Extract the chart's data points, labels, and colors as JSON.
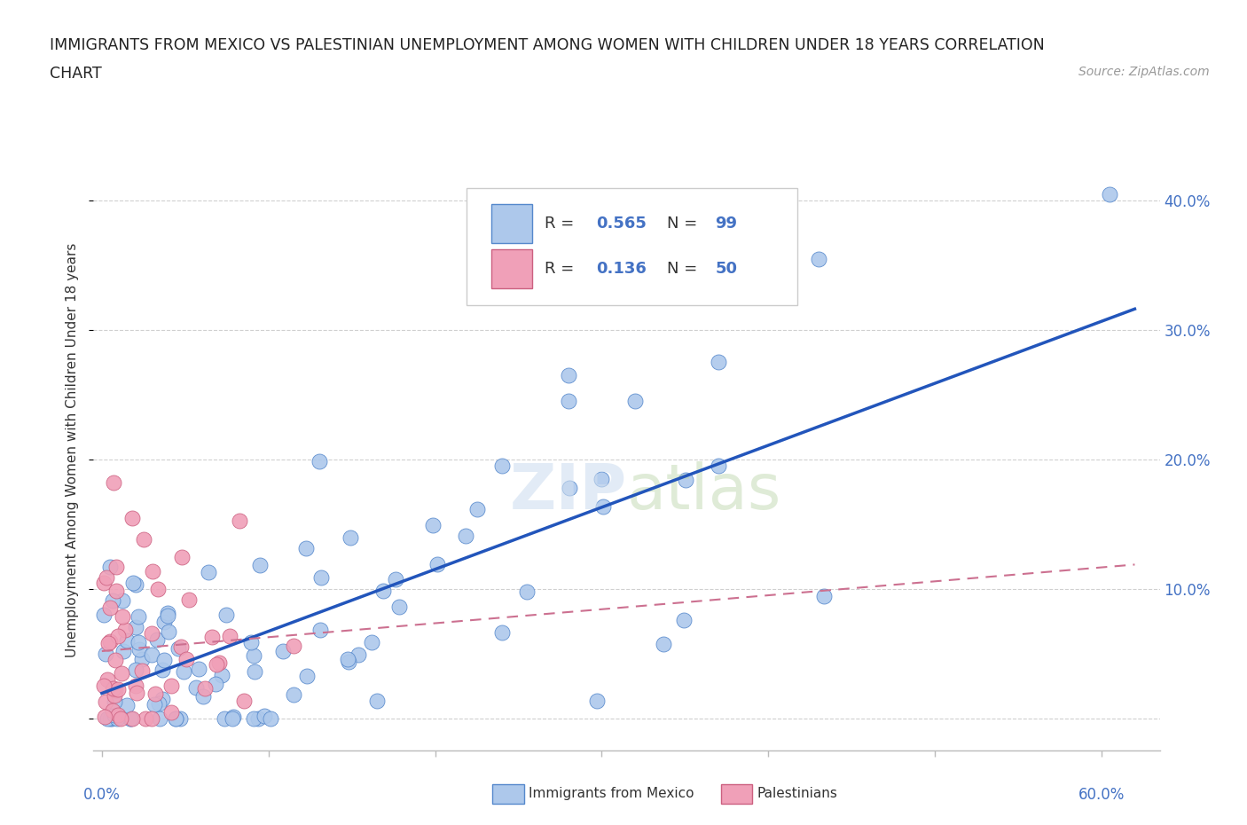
{
  "title_line1": "IMMIGRANTS FROM MEXICO VS PALESTINIAN UNEMPLOYMENT AMONG WOMEN WITH CHILDREN UNDER 18 YEARS CORRELATION",
  "title_line2": "CHART",
  "source": "Source: ZipAtlas.com",
  "ylabel": "Unemployment Among Women with Children Under 18 years",
  "r_mexico": 0.565,
  "n_mexico": 99,
  "r_palestinians": 0.136,
  "n_palestinians": 50,
  "color_mexico": "#adc8eb",
  "color_mexico_edge": "#5588cc",
  "color_mexico_line": "#2255bb",
  "color_pal": "#f0a0b8",
  "color_pal_edge": "#cc6080",
  "color_pal_line": "#cc7090",
  "xlim": [
    -0.005,
    0.635
  ],
  "ylim": [
    -0.025,
    0.44
  ],
  "ytick_vals": [
    0.0,
    0.1,
    0.2,
    0.3,
    0.4
  ],
  "ytick_labels": [
    "",
    "10.0%",
    "20.0%",
    "30.0%",
    "40.0%"
  ],
  "xtick_vals": [
    0.0,
    0.1,
    0.2,
    0.3,
    0.4,
    0.5,
    0.6
  ],
  "background_color": "#ffffff",
  "grid_color": "#d0d0d0",
  "watermark": "ZIPatlas"
}
